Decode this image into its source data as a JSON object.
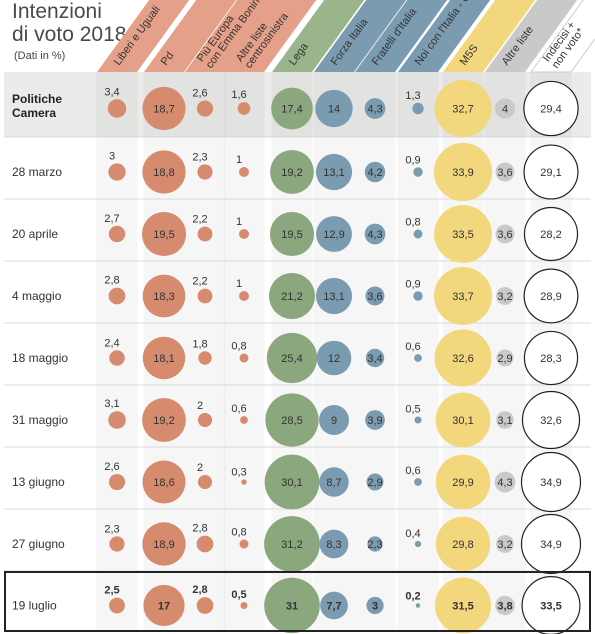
{
  "title_line1": "Intenzioni",
  "title_line2": "di voto 2018",
  "subtitle": "(Dati in %)",
  "chart_data": {
    "type": "table",
    "categories": [
      "Politiche Camera",
      "28 marzo",
      "20 aprile",
      "4 maggio",
      "18 maggio",
      "31 maggio",
      "13  giugno",
      "27 giugno",
      "19 luglio"
    ],
    "series": [
      {
        "name": "Liberi e Uguali",
        "color": "#d68a6e",
        "values": [
          3.4,
          3,
          2.7,
          2.8,
          2.4,
          3.1,
          2.6,
          2.3,
          2.5
        ]
      },
      {
        "name": "Pd",
        "color": "#d68a6e",
        "values": [
          18.7,
          18.8,
          19.5,
          18.3,
          18.1,
          19.2,
          18.6,
          18.9,
          17
        ]
      },
      {
        "name": "Più Europa con Emma Bonino",
        "color": "#d68a6e",
        "values": [
          2.6,
          2.3,
          2.2,
          2.2,
          1.8,
          2,
          2,
          2.8,
          2.8
        ]
      },
      {
        "name": "Altre liste centrosinistra",
        "color": "#d68a6e",
        "values": [
          1.6,
          1,
          1,
          1,
          0.8,
          0.6,
          0.3,
          0.8,
          0.5
        ]
      },
      {
        "name": "Lega",
        "color": "#8aa77e",
        "values": [
          17.4,
          19.2,
          19.5,
          21.2,
          25.4,
          28.5,
          30.1,
          31.2,
          31
        ]
      },
      {
        "name": "Forza Italia",
        "color": "#7b9bb0",
        "values": [
          14,
          13.1,
          12.9,
          13.1,
          12,
          9,
          8.7,
          8.3,
          7.7
        ]
      },
      {
        "name": "Fratelli d'Italia",
        "color": "#7b9bb0",
        "values": [
          4.3,
          4.2,
          4.3,
          3.6,
          3.4,
          3.9,
          2.9,
          2.3,
          3
        ]
      },
      {
        "name": "Noi con l'Italia - Udc",
        "color": "#7b9bb0",
        "values": [
          1.3,
          0.9,
          0.8,
          0.9,
          0.6,
          0.5,
          0.6,
          0.4,
          0.2
        ]
      },
      {
        "name": "M5S",
        "color": "#f2d77c",
        "values": [
          32.7,
          33.9,
          33.5,
          33.7,
          32.6,
          30.1,
          29.9,
          29.8,
          31.5
        ]
      },
      {
        "name": "Altre liste",
        "color": "#c9c9c9",
        "values": [
          4,
          3.6,
          3.6,
          3.2,
          2.9,
          3.1,
          4.3,
          3.2,
          3.8
        ]
      },
      {
        "name": "Indecisi + non voto*",
        "color": "#ffffff",
        "values": [
          29.4,
          29.1,
          28.2,
          28.9,
          28.3,
          32.6,
          34.9,
          34.9,
          33.5
        ]
      }
    ],
    "value_display": [
      [
        "3,4",
        "3",
        "2,7",
        "2,8",
        "2,4",
        "3,1",
        "2,6",
        "2,3",
        "2,5"
      ],
      [
        "18,7",
        "18,8",
        "19,5",
        "18,3",
        "18,1",
        "19,2",
        "18,6",
        "18,9",
        "17"
      ],
      [
        "2,6",
        "2,3",
        "2,2",
        "2,2",
        "1,8",
        "2",
        "2",
        "2,8",
        "2,8"
      ],
      [
        "1,6",
        "1",
        "1",
        "1",
        "0,8",
        "0,6",
        "0,3",
        "0,8",
        "0,5"
      ],
      [
        "17,4",
        "19,2",
        "19,5",
        "21,2",
        "25,4",
        "28,5",
        "30,1",
        "31,2",
        "31"
      ],
      [
        "14",
        "13,1",
        "12,9",
        "13,1",
        "12",
        "9",
        "8,7",
        "8,3",
        "7,7"
      ],
      [
        "4,3",
        "4,2",
        "4,3",
        "3,6",
        "3,4",
        "3,9",
        "2,9",
        "2,3",
        "3"
      ],
      [
        "1,3",
        "0,9",
        "0,8",
        "0,9",
        "0,6",
        "0,5",
        "0,6",
        "0,4",
        "0,2"
      ],
      [
        "32,7",
        "33,9",
        "33,5",
        "33,7",
        "32,6",
        "30,1",
        "29,9",
        "29,8",
        "31,5"
      ],
      [
        "4",
        "3,6",
        "3,6",
        "3,2",
        "2,9",
        "3,1",
        "4,3",
        "3,2",
        "3,8"
      ],
      [
        "29,4",
        "29,1",
        "28,2",
        "28,9",
        "28,3",
        "32,6",
        "34,9",
        "34,9",
        "33,5"
      ]
    ],
    "header_colors": [
      "#e4a088",
      "#e4a088",
      "#e4a088",
      "#e4a088",
      "#9ab58c",
      "#7b9bb0",
      "#7b9bb0",
      "#7b9bb0",
      "#f2d77c",
      "#c9c9c9",
      "#ffffff"
    ],
    "label_outside": [
      true,
      false,
      true,
      true,
      false,
      false,
      false,
      true,
      false,
      false,
      false
    ],
    "bold_rows": [
      "Politiche Camera",
      "19 luglio"
    ],
    "highlight_row": "19 luglio"
  }
}
